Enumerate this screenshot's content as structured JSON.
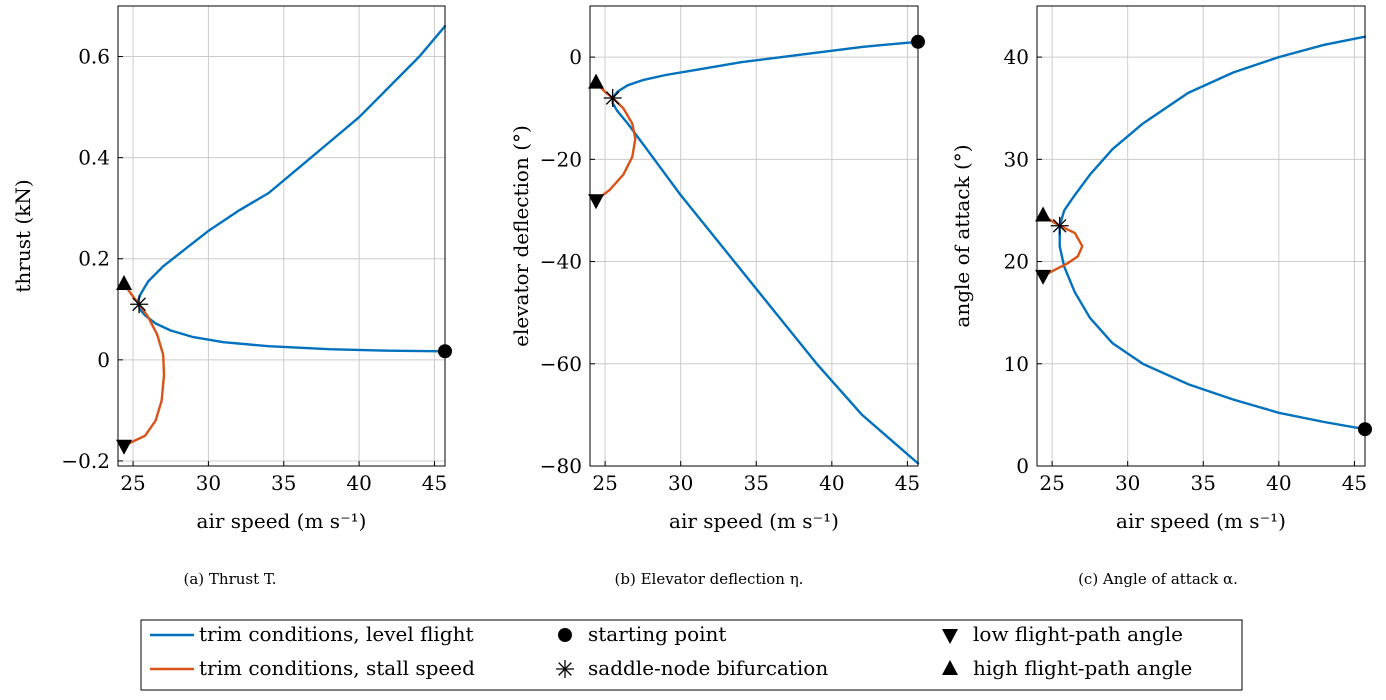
{
  "colors": {
    "blue": "#0072bd",
    "orange": "#d95319",
    "grid": "#cccccc"
  },
  "chart_data": [
    {
      "type": "line",
      "caption": "(a) Thrust T.",
      "xlabel": "air speed (m s⁻¹)",
      "ylabel": "thrust (kN)",
      "xlim": [
        24,
        45.7
      ],
      "ylim": [
        -0.21,
        0.7
      ],
      "xticks": [
        25,
        30,
        35,
        40,
        45
      ],
      "xtick_labels": [
        "25",
        "30",
        "35",
        "40",
        "45"
      ],
      "yticks": [
        -0.2,
        0,
        0.2,
        0.4,
        0.6
      ],
      "ytick_labels": [
        "−0.2",
        "0",
        "0.2",
        "0.4",
        "0.6"
      ],
      "grid": true,
      "series": [
        {
          "name": "trim conditions, level flight",
          "color": "blue",
          "x": [
            45.7,
            44,
            42,
            40,
            38,
            36,
            34,
            32,
            30,
            28.5,
            27,
            26,
            25.5,
            25.3,
            25.45,
            25.8,
            26.5,
            27.5,
            29,
            31,
            34,
            38,
            42,
            45.7
          ],
          "y": [
            0.66,
            0.6,
            0.54,
            0.48,
            0.43,
            0.38,
            0.33,
            0.295,
            0.255,
            0.22,
            0.185,
            0.155,
            0.13,
            0.115,
            0.1,
            0.088,
            0.072,
            0.058,
            0.045,
            0.035,
            0.027,
            0.021,
            0.018,
            0.017
          ]
        },
        {
          "name": "trim conditions, stall speed",
          "color": "orange",
          "x": [
            24.4,
            25.0,
            25.4,
            26.0,
            26.6,
            27.0,
            27.05,
            26.9,
            26.5,
            25.8,
            24.4
          ],
          "y": [
            0.15,
            0.125,
            0.11,
            0.085,
            0.05,
            0.01,
            -0.03,
            -0.08,
            -0.12,
            -0.15,
            -0.17
          ]
        }
      ],
      "markers": [
        {
          "type": "starting point",
          "x": 45.7,
          "y": 0.017
        },
        {
          "type": "saddle-node bifurcation",
          "x": 25.4,
          "y": 0.11
        },
        {
          "type": "high flight-path angle",
          "x": 24.4,
          "y": 0.15
        },
        {
          "type": "low flight-path angle",
          "x": 24.4,
          "y": -0.17
        }
      ]
    },
    {
      "type": "line",
      "caption": "(b) Elevator deflection η.",
      "xlabel": "air speed (m s⁻¹)",
      "ylabel": "elevator deflection (°)",
      "xlim": [
        24,
        45.7
      ],
      "ylim": [
        -80,
        10
      ],
      "xticks": [
        25,
        30,
        35,
        40,
        45
      ],
      "xtick_labels": [
        "25",
        "30",
        "35",
        "40",
        "45"
      ],
      "yticks": [
        -80,
        -60,
        -40,
        -20,
        0
      ],
      "ytick_labels": [
        "−80",
        "−60",
        "−40",
        "−20",
        "0"
      ],
      "grid": true,
      "series": [
        {
          "name": "trim conditions, level flight",
          "color": "blue",
          "x": [
            45.7,
            42,
            38,
            34,
            31,
            29,
            27.5,
            26.5,
            25.8,
            25.5,
            25.5,
            25.8,
            26.5,
            28,
            30,
            33,
            36,
            39,
            42,
            45.7
          ],
          "y": [
            3,
            2,
            0.5,
            -1,
            -2.5,
            -3.5,
            -4.5,
            -5.5,
            -6.8,
            -8,
            -9,
            -10.5,
            -13,
            -19,
            -27,
            -38,
            -49,
            -60,
            -70,
            -79.5
          ]
        },
        {
          "name": "trim conditions, stall speed",
          "color": "orange",
          "x": [
            24.4,
            25.0,
            25.5,
            26.2,
            26.8,
            27.0,
            26.8,
            26.2,
            25.3,
            24.4
          ],
          "y": [
            -5,
            -6.8,
            -8,
            -10,
            -13,
            -16,
            -19.5,
            -23,
            -26,
            -28
          ]
        }
      ],
      "markers": [
        {
          "type": "starting point",
          "x": 45.7,
          "y": 3
        },
        {
          "type": "saddle-node bifurcation",
          "x": 25.5,
          "y": -8
        },
        {
          "type": "high flight-path angle",
          "x": 24.4,
          "y": -5
        },
        {
          "type": "low flight-path angle",
          "x": 24.4,
          "y": -28
        }
      ]
    },
    {
      "type": "line",
      "caption": "(c) Angle of attack α.",
      "xlabel": "air speed (m s⁻¹)",
      "ylabel": "angle of attack (°)",
      "xlim": [
        24,
        45.7
      ],
      "ylim": [
        0,
        45
      ],
      "xticks": [
        25,
        30,
        35,
        40,
        45
      ],
      "xtick_labels": [
        "25",
        "30",
        "35",
        "40",
        "45"
      ],
      "yticks": [
        0,
        10,
        20,
        30,
        40
      ],
      "ytick_labels": [
        "0",
        "10",
        "20",
        "30",
        "40"
      ],
      "grid": true,
      "series": [
        {
          "name": "trim conditions, level flight",
          "color": "blue",
          "x": [
            45.7,
            43,
            40,
            37,
            34,
            31,
            29,
            27.5,
            26.5,
            25.8,
            25.5,
            25.5,
            25.8,
            26.5,
            27.5,
            29,
            31,
            34,
            37,
            40,
            43,
            45.7
          ],
          "y": [
            42,
            41.2,
            40,
            38.5,
            36.5,
            33.5,
            31,
            28.5,
            26.5,
            25,
            23.5,
            21.5,
            19.5,
            17,
            14.5,
            12,
            10,
            8,
            6.5,
            5.2,
            4.3,
            3.6
          ]
        },
        {
          "name": "trim conditions, stall speed",
          "color": "orange",
          "x": [
            24.4,
            25.5,
            26.5,
            27.0,
            26.7,
            26.0,
            25.2,
            24.4
          ],
          "y": [
            24.5,
            23.5,
            22.8,
            21.5,
            20.5,
            19.8,
            19.2,
            18.6
          ]
        }
      ],
      "markers": [
        {
          "type": "starting point",
          "x": 45.7,
          "y": 3.6
        },
        {
          "type": "saddle-node bifurcation",
          "x": 25.5,
          "y": 23.5
        },
        {
          "type": "high flight-path angle",
          "x": 24.4,
          "y": 24.5
        },
        {
          "type": "low flight-path angle",
          "x": 24.4,
          "y": 18.6
        }
      ]
    }
  ],
  "legend": {
    "items": [
      {
        "label": "trim conditions, level flight",
        "symbol": "line",
        "color": "blue"
      },
      {
        "label": "starting point",
        "symbol": "circle"
      },
      {
        "label": "low flight-path angle",
        "symbol": "triangle-down"
      },
      {
        "label": "trim conditions, stall speed",
        "symbol": "line",
        "color": "orange"
      },
      {
        "label": "saddle-node bifurcation",
        "symbol": "asterisk"
      },
      {
        "label": "high flight-path angle",
        "symbol": "triangle-up"
      }
    ]
  }
}
